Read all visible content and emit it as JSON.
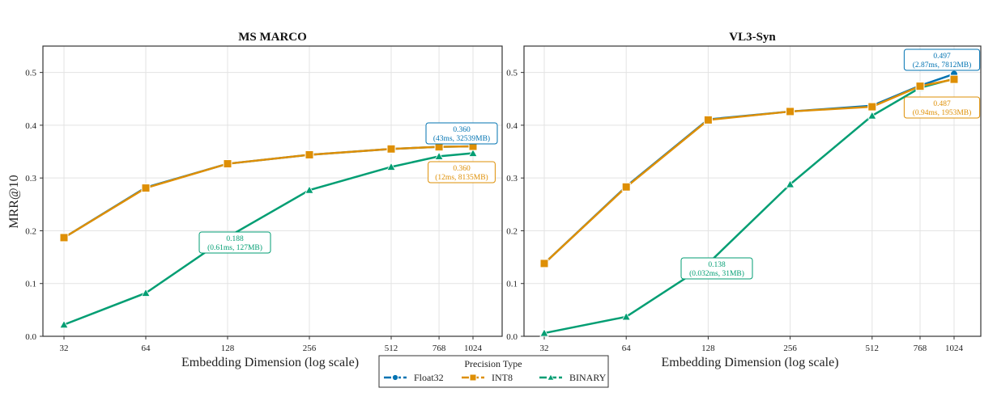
{
  "colors": {
    "Float32": "#0173b2",
    "INT8": "#de8f05",
    "BINARY": "#029e73"
  },
  "legend": {
    "title": "Precision Type",
    "placement": "bottom-center",
    "entries": [
      {
        "label": "Float32",
        "marker": "circle"
      },
      {
        "label": "INT8",
        "marker": "square"
      },
      {
        "label": "BINARY",
        "marker": "triangle"
      }
    ]
  },
  "chart_data": [
    {
      "type": "line",
      "title": "MS MARCO",
      "xlabel": "Embedding Dimension (log scale)",
      "ylabel": "MRR@10",
      "xscale": "log",
      "x": [
        32,
        64,
        128,
        256,
        512,
        768,
        1024
      ],
      "xticks": [
        "32",
        "64",
        "128",
        "256",
        "512",
        "768",
        "1024"
      ],
      "ylim": [
        0,
        0.55
      ],
      "yticks": [
        "0.0",
        "0.1",
        "0.2",
        "0.3",
        "0.4",
        "0.5"
      ],
      "grid": true,
      "series": [
        {
          "name": "Float32",
          "values": [
            0.187,
            0.282,
            0.327,
            0.344,
            0.355,
            0.359,
            0.36
          ]
        },
        {
          "name": "INT8",
          "values": [
            0.187,
            0.281,
            0.327,
            0.344,
            0.355,
            0.359,
            0.36
          ]
        },
        {
          "name": "BINARY",
          "values": [
            0.022,
            0.082,
            0.188,
            0.277,
            0.321,
            0.341,
            0.347
          ]
        }
      ],
      "annotations": [
        {
          "series": "Float32",
          "x": 1024,
          "line1": "0.360",
          "line2": "(43ms, 32539MB)"
        },
        {
          "series": "INT8",
          "x": 1024,
          "line1": "0.360",
          "line2": "(12ms, 8135MB)"
        },
        {
          "series": "BINARY",
          "x": 128,
          "line1": "0.188",
          "line2": "(0.61ms, 127MB)"
        }
      ]
    },
    {
      "type": "line",
      "title": "VL3-Syn",
      "xlabel": "Embedding Dimension (log scale)",
      "ylabel": "",
      "xscale": "log",
      "x": [
        32,
        64,
        128,
        256,
        512,
        768,
        1024
      ],
      "xticks": [
        "32",
        "64",
        "128",
        "256",
        "512",
        "768",
        "1024"
      ],
      "ylim": [
        0,
        0.55
      ],
      "yticks": [
        "0.0",
        "0.1",
        "0.2",
        "0.3",
        "0.4",
        "0.5"
      ],
      "grid": true,
      "series": [
        {
          "name": "Float32",
          "values": [
            0.138,
            0.284,
            0.411,
            0.426,
            0.437,
            0.475,
            0.497
          ]
        },
        {
          "name": "INT8",
          "values": [
            0.138,
            0.283,
            0.41,
            0.426,
            0.435,
            0.474,
            0.487
          ]
        },
        {
          "name": "BINARY",
          "values": [
            0.006,
            0.037,
            0.138,
            0.288,
            0.418,
            0.471,
            0.488
          ]
        }
      ],
      "annotations": [
        {
          "series": "Float32",
          "x": 1024,
          "line1": "0.497",
          "line2": "(2.87ms, 7812MB)"
        },
        {
          "series": "INT8",
          "x": 1024,
          "line1": "0.487",
          "line2": "(0.94ms, 1953MB)"
        },
        {
          "series": "BINARY",
          "x": 128,
          "line1": "0.138",
          "line2": "(0.032ms, 31MB)"
        }
      ]
    }
  ]
}
